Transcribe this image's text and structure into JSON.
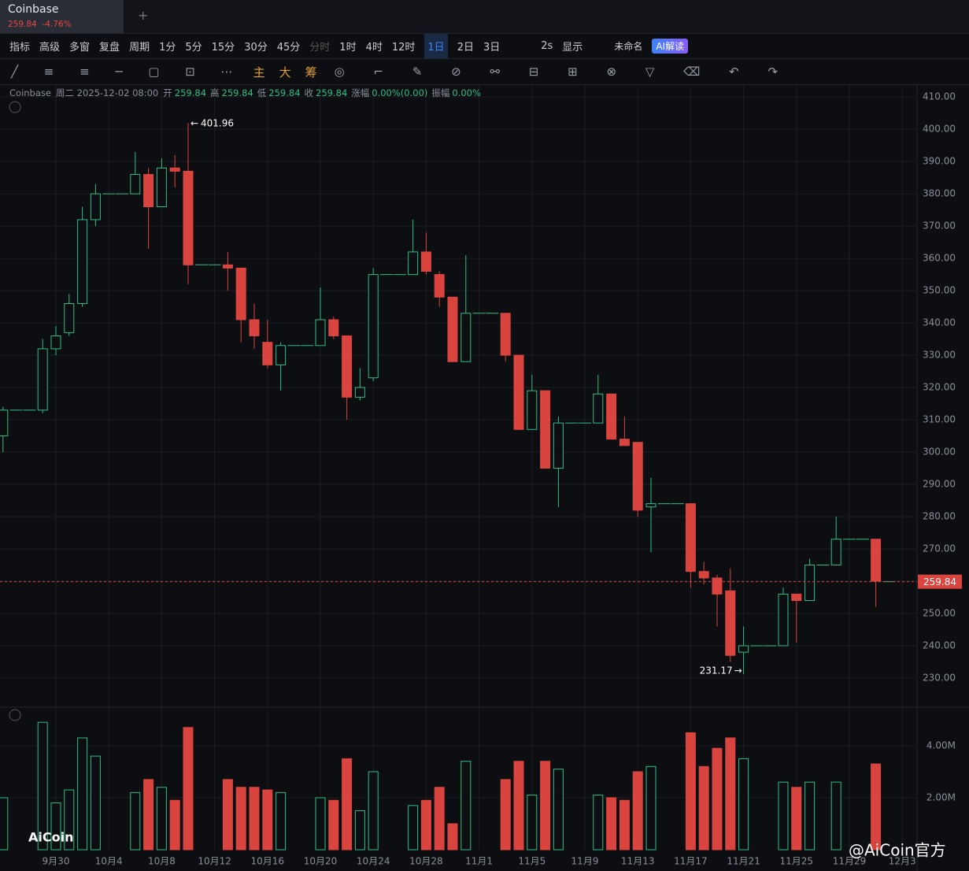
{
  "header": {
    "symbol": "Coinbase",
    "price": "259.84",
    "change": "-4.76%"
  },
  "toolbar": {
    "row1": [
      "指标",
      "高级",
      "多窗",
      "复盘",
      "周期",
      "1分",
      "5分",
      "15分",
      "30分",
      "45分",
      "分时",
      "1时",
      "4时",
      "12时",
      "1日",
      "2日",
      "3日",
      "2s",
      "显示",
      "未命名",
      "AI解读"
    ],
    "row2": [
      "主",
      "大",
      "筹"
    ]
  },
  "info": {
    "symbol": "Coinbase",
    "date": "周二 2025-12-02 08:00",
    "fields": [
      {
        "label": "开",
        "value": "259.84"
      },
      {
        "label": "高",
        "value": "259.84"
      },
      {
        "label": "低",
        "value": "259.84"
      },
      {
        "label": "收",
        "value": "259.84"
      },
      {
        "label": "涨幅",
        "value": "0.00%(0.00)"
      },
      {
        "label": "振幅",
        "value": "0.00%"
      }
    ]
  },
  "watermark": {
    "logo": "AiCoin",
    "credit": "@AiCoin官方"
  },
  "chart_data": {
    "type": "candlestick",
    "up_color": "#2ebd85",
    "down_color": "#d9443f",
    "open": [
      305,
      313,
      313,
      313,
      332,
      337,
      346,
      372,
      380,
      380,
      380,
      386,
      376,
      388,
      387,
      358,
      358,
      358,
      357,
      341,
      334,
      327,
      333,
      333,
      333,
      341,
      336,
      317,
      323,
      355,
      355,
      355,
      362,
      355,
      348,
      328,
      343,
      343,
      343,
      330,
      307,
      319,
      295,
      309,
      309,
      309,
      318,
      304,
      303,
      283,
      284,
      284,
      284,
      263,
      261,
      257,
      238,
      240,
      240,
      240,
      256,
      254,
      265,
      265,
      273,
      273,
      273,
      259.84
    ],
    "high": [
      314,
      313,
      313,
      335,
      339,
      349,
      376,
      383,
      380,
      380,
      393,
      388,
      391,
      392,
      401.96,
      358,
      358,
      362,
      357,
      346,
      341,
      334,
      333,
      333,
      351,
      342,
      336,
      326,
      357,
      355,
      355,
      372,
      368,
      356,
      348,
      361,
      343,
      343,
      343,
      330,
      324,
      319,
      311,
      309,
      309,
      324,
      318,
      311,
      303,
      292,
      284,
      284,
      284,
      266,
      262,
      264,
      246,
      240,
      240,
      258,
      256,
      267,
      265,
      280,
      273,
      273,
      273,
      259.84
    ],
    "low": [
      300,
      313,
      313,
      312,
      330,
      336,
      345,
      370,
      380,
      380,
      380,
      363,
      376,
      382,
      352,
      358,
      358,
      350,
      334,
      332,
      326,
      319,
      333,
      333,
      333,
      335,
      310,
      316,
      322,
      355,
      355,
      355,
      355,
      345,
      328,
      328,
      343,
      343,
      328,
      307,
      307,
      295,
      283,
      309,
      309,
      309,
      304,
      302,
      280,
      269,
      284,
      284,
      258,
      259,
      246,
      235,
      231.17,
      240,
      240,
      240,
      241,
      254,
      265,
      265,
      273,
      273,
      252,
      259.84
    ],
    "close": [
      313,
      313,
      313,
      332,
      336,
      346,
      372,
      380,
      380,
      380,
      386,
      376,
      388,
      387,
      358,
      358,
      358,
      357,
      341,
      336,
      327,
      333,
      333,
      333,
      341,
      336,
      317,
      320,
      355,
      355,
      355,
      362,
      356,
      348,
      328,
      343,
      343,
      343,
      330,
      307,
      319,
      295,
      309,
      309,
      309,
      318,
      304,
      302,
      282,
      284,
      284,
      284,
      263,
      261,
      256,
      237,
      240,
      240,
      240,
      256,
      254,
      265,
      265,
      273,
      273,
      273,
      260,
      259.84
    ],
    "volume": [
      2.0,
      0,
      0,
      4.9,
      1.8,
      2.3,
      4.3,
      3.6,
      0,
      0,
      2.2,
      2.7,
      2.4,
      1.9,
      4.7,
      0,
      0,
      2.7,
      2.4,
      2.4,
      2.3,
      2.2,
      0,
      0,
      2.0,
      1.9,
      3.5,
      1.5,
      3.0,
      0,
      0,
      1.7,
      1.9,
      2.4,
      1.0,
      3.4,
      0,
      0,
      2.7,
      3.4,
      2.1,
      3.4,
      3.1,
      0,
      0,
      2.1,
      2.0,
      1.9,
      3.0,
      3.2,
      0,
      0,
      4.5,
      3.2,
      3.9,
      4.3,
      3.5,
      0,
      0,
      2.6,
      2.4,
      2.6,
      0,
      2.6,
      0,
      0,
      3.3,
      0
    ],
    "xlim": [
      0,
      68
    ],
    "xticks": [
      {
        "value": 4,
        "label": "9月30"
      },
      {
        "value": 8,
        "label": "10月4"
      },
      {
        "value": 12,
        "label": "10月8"
      },
      {
        "value": 16,
        "label": "10月12"
      },
      {
        "value": 20,
        "label": "10月16"
      },
      {
        "value": 24,
        "label": "10月20"
      },
      {
        "value": 28,
        "label": "10月24"
      },
      {
        "value": 32,
        "label": "10月28"
      },
      {
        "value": 36,
        "label": "11月1"
      },
      {
        "value": 40,
        "label": "11月5"
      },
      {
        "value": 44,
        "label": "11月9"
      },
      {
        "value": 48,
        "label": "11月13"
      },
      {
        "value": 52,
        "label": "11月17"
      },
      {
        "value": 56,
        "label": "11月21"
      },
      {
        "value": 60,
        "label": "11月25"
      },
      {
        "value": 64,
        "label": "11月29"
      },
      {
        "value": 68,
        "label": "12月3"
      }
    ],
    "ylim": [
      221.2,
      413.7
    ],
    "yticks": [
      {
        "value": 230,
        "label": "230.00"
      },
      {
        "value": 240,
        "label": "240.00"
      },
      {
        "value": 250,
        "label": "250.00"
      },
      {
        "value": 260,
        "label": "260.00"
      },
      {
        "value": 270,
        "label": "270.00"
      },
      {
        "value": 280,
        "label": "280.00"
      },
      {
        "value": 290,
        "label": "290.00"
      },
      {
        "value": 300,
        "label": "300.00"
      },
      {
        "value": 310,
        "label": "310.00"
      },
      {
        "value": 320,
        "label": "320.00"
      },
      {
        "value": 330,
        "label": "330.00"
      },
      {
        "value": 340,
        "label": "340.00"
      },
      {
        "value": 350,
        "label": "350.00"
      },
      {
        "value": 360,
        "label": "360.00"
      },
      {
        "value": 370,
        "label": "370.00"
      },
      {
        "value": 380,
        "label": "380.00"
      },
      {
        "value": 390,
        "label": "390.00"
      },
      {
        "value": 400,
        "label": "400.00"
      },
      {
        "value": 410,
        "label": "410.00"
      }
    ],
    "vlim": [
      0,
      5.42
    ],
    "vticks": [
      {
        "value": 2,
        "label": "2.00M"
      },
      {
        "value": 4,
        "label": "4.00M"
      }
    ],
    "max_index": 14,
    "min_index": 56,
    "last_index": 67,
    "grid": true
  }
}
